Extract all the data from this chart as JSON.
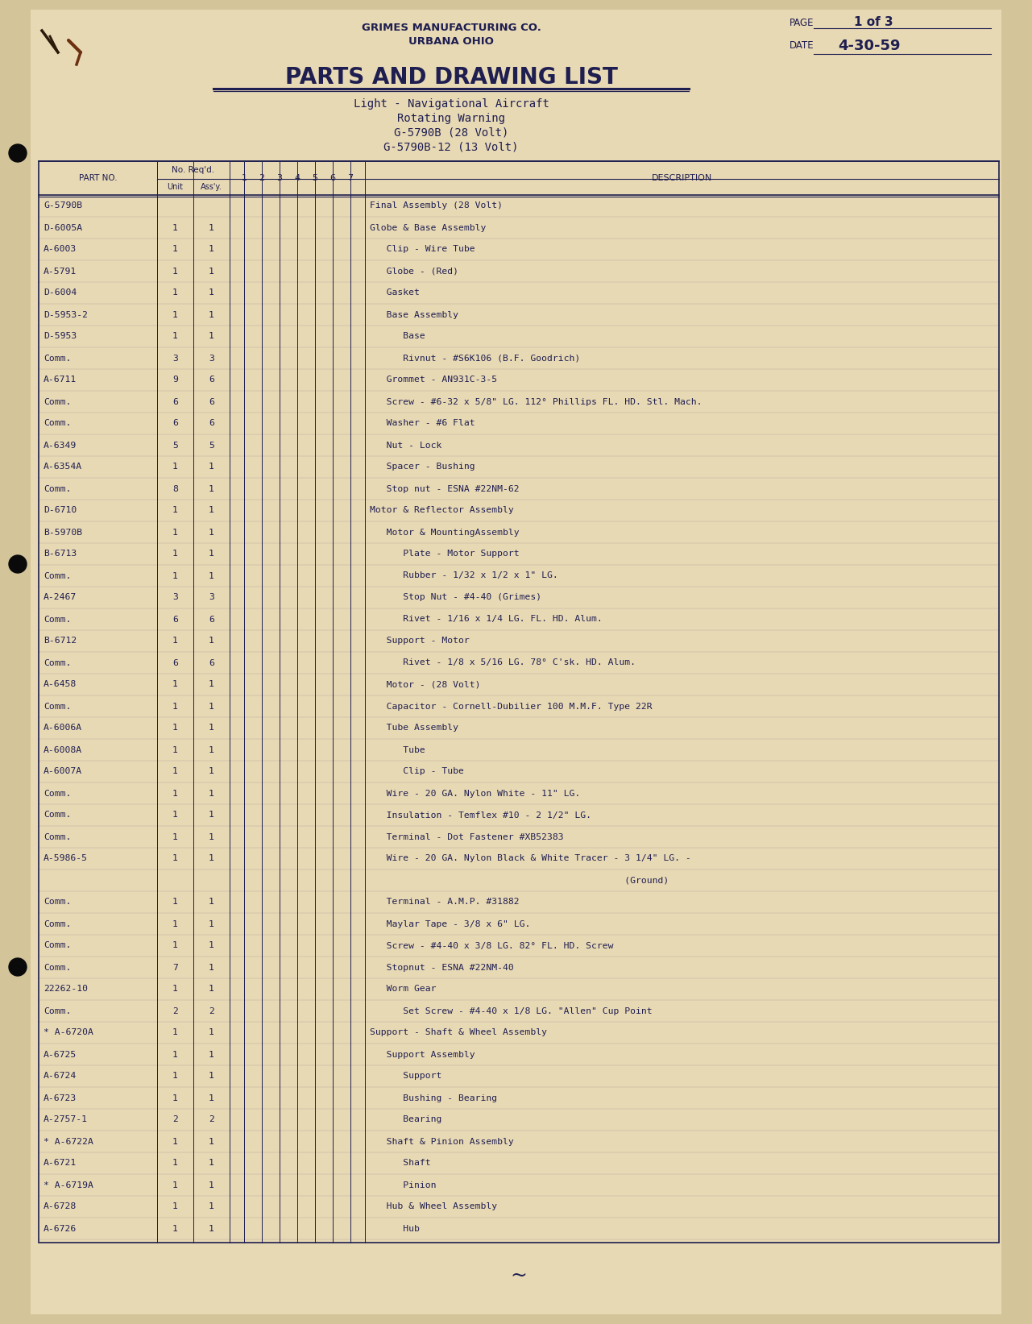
{
  "bg_color": "#d4c49a",
  "page_color": "#e8d9b5",
  "text_color": "#1e1e50",
  "company": "GRIMES MANUFACTURING CO.",
  "city": "URBANA OHIO",
  "page_num": "1 of 3",
  "date_val": "4-30-59",
  "title": "PARTS AND DRAWING LIST",
  "subtitle1": "Light - Navigational Aircraft",
  "subtitle2": "Rotating Warning",
  "subtitle3": "G-5790B (28 Volt)",
  "subtitle4": "G-5790B-12 (13 Volt)",
  "rows": [
    [
      "G-5790B",
      "",
      "",
      "Final Assembly (28 Volt)"
    ],
    [
      "D-6005A",
      "1",
      "1",
      "Globe & Base Assembly"
    ],
    [
      "A-6003",
      "1",
      "1",
      "   Clip - Wire Tube"
    ],
    [
      "A-5791",
      "1",
      "1",
      "   Globe - (Red)"
    ],
    [
      "D-6004",
      "1",
      "1",
      "   Gasket"
    ],
    [
      "D-5953-2",
      "1",
      "1",
      "   Base Assembly"
    ],
    [
      "D-5953",
      "1",
      "1",
      "      Base"
    ],
    [
      "Comm.",
      "3",
      "3",
      "      Rivnut - #S6K106 (B.F. Goodrich)"
    ],
    [
      "A-6711",
      "9",
      "6",
      "   Grommet - AN931C-3-5"
    ],
    [
      "Comm.",
      "6",
      "6",
      "   Screw - #6-32 x 5/8\" LG. 112° Phillips FL. HD. Stl. Mach."
    ],
    [
      "Comm.",
      "6",
      "6",
      "   Washer - #6 Flat"
    ],
    [
      "A-6349",
      "5",
      "5",
      "   Nut - Lock"
    ],
    [
      "A-6354A",
      "1",
      "1",
      "   Spacer - Bushing"
    ],
    [
      "Comm.",
      "8",
      "1",
      "   Stop nut - ESNA #22NM-62"
    ],
    [
      "D-6710",
      "1",
      "1",
      "Motor & Reflector Assembly"
    ],
    [
      "B-5970B",
      "1",
      "1",
      "   Motor & MountingAssembly"
    ],
    [
      "B-6713",
      "1",
      "1",
      "      Plate - Motor Support"
    ],
    [
      "Comm.",
      "1",
      "1",
      "      Rubber - 1/32 x 1/2 x 1\" LG."
    ],
    [
      "A-2467",
      "3",
      "3",
      "      Stop Nut - #4-40 (Grimes)"
    ],
    [
      "Comm.",
      "6",
      "6",
      "      Rivet - 1/16 x 1/4 LG. FL. HD. Alum."
    ],
    [
      "B-6712",
      "1",
      "1",
      "   Support - Motor"
    ],
    [
      "Comm.",
      "6",
      "6",
      "      Rivet - 1/8 x 5/16 LG. 78° C'sk. HD. Alum."
    ],
    [
      "A-6458",
      "1",
      "1",
      "   Motor - (28 Volt)"
    ],
    [
      "Comm.",
      "1",
      "1",
      "   Capacitor - Cornell-Dubilier 100 M.M.F. Type 22R"
    ],
    [
      "A-6006A",
      "1",
      "1",
      "   Tube Assembly"
    ],
    [
      "A-6008A",
      "1",
      "1",
      "      Tube"
    ],
    [
      "A-6007A",
      "1",
      "1",
      "      Clip - Tube"
    ],
    [
      "Comm.",
      "1",
      "1",
      "   Wire - 20 GA. Nylon White - 11\" LG."
    ],
    [
      "Comm.",
      "1",
      "1",
      "   Insulation - Temflex #10 - 2 1/2\" LG."
    ],
    [
      "Comm.",
      "1",
      "1",
      "   Terminal - Dot Fastener #XB52383"
    ],
    [
      "A-5986-5",
      "1",
      "1",
      "   Wire - 20 GA. Nylon Black & White Tracer - 3 1/4\" LG. -"
    ],
    [
      "",
      "",
      "",
      "                                              (Ground)"
    ],
    [
      "Comm.",
      "1",
      "1",
      "   Terminal - A.M.P. #31882"
    ],
    [
      "Comm.",
      "1",
      "1",
      "   Maylar Tape - 3/8 x 6\" LG."
    ],
    [
      "Comm.",
      "1",
      "1",
      "   Screw - #4-40 x 3/8 LG. 82° FL. HD. Screw"
    ],
    [
      "Comm.",
      "7",
      "1",
      "   Stopnut - ESNA #22NM-40"
    ],
    [
      "22262-10",
      "1",
      "1",
      "   Worm Gear"
    ],
    [
      "Comm.",
      "2",
      "2",
      "      Set Screw - #4-40 x 1/8 LG. \"Allen\" Cup Point"
    ],
    [
      "* A-6720A",
      "1",
      "1",
      "Support - Shaft & Wheel Assembly"
    ],
    [
      "A-6725",
      "1",
      "1",
      "   Support Assembly"
    ],
    [
      "A-6724",
      "1",
      "1",
      "      Support"
    ],
    [
      "A-6723",
      "1",
      "1",
      "      Bushing - Bearing"
    ],
    [
      "A-2757-1",
      "2",
      "2",
      "      Bearing"
    ],
    [
      "* A-6722A",
      "1",
      "1",
      "   Shaft & Pinion Assembly"
    ],
    [
      "A-6721",
      "1",
      "1",
      "      Shaft"
    ],
    [
      "* A-6719A",
      "1",
      "1",
      "      Pinion"
    ],
    [
      "A-6728",
      "1",
      "1",
      "   Hub & Wheel Assembly"
    ],
    [
      "A-6726",
      "1",
      "1",
      "      Hub"
    ]
  ]
}
